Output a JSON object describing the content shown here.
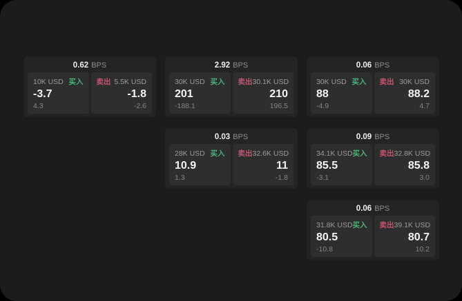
{
  "labels": {
    "buy": "买入",
    "sell": "卖出",
    "bps": "BPS"
  },
  "colors": {
    "buy": "#46b275",
    "sell": "#c2556d",
    "window_bg": "#1c1c1c",
    "card_bg": "#242424",
    "tile_bg": "#2e2e2e"
  },
  "cards": [
    {
      "col": 1,
      "row": 1,
      "bps": "0.62",
      "buy": {
        "size": "10K USD",
        "price": "-3.7",
        "delta": "4.3"
      },
      "sell": {
        "size": "5.5K USD",
        "price": "-1.8",
        "delta": "-2.6"
      }
    },
    {
      "col": 2,
      "row": 1,
      "bps": "2.92",
      "buy": {
        "size": "30K USD",
        "price": "201",
        "delta": "-188.1"
      },
      "sell": {
        "size": "30.1K USD",
        "price": "210",
        "delta": "196.5"
      }
    },
    {
      "col": 3,
      "row": 1,
      "bps": "0.06",
      "buy": {
        "size": "30K USD",
        "price": "88",
        "delta": "-4.9"
      },
      "sell": {
        "size": "30K USD",
        "price": "88.2",
        "delta": "4.7"
      }
    },
    {
      "col": 2,
      "row": 2,
      "bps": "0.03",
      "buy": {
        "size": "28K USD",
        "price": "10.9",
        "delta": "1.3"
      },
      "sell": {
        "size": "32.6K USD",
        "price": "11",
        "delta": "-1.8"
      }
    },
    {
      "col": 3,
      "row": 2,
      "bps": "0.09",
      "buy": {
        "size": "34.1K USD",
        "price": "85.5",
        "delta": "-3.1"
      },
      "sell": {
        "size": "32.8K USD",
        "price": "85.8",
        "delta": "3.0"
      }
    },
    {
      "col": 3,
      "row": 3,
      "bps": "0.06",
      "buy": {
        "size": "31.8K USD",
        "price": "80.5",
        "delta": "-10.8"
      },
      "sell": {
        "size": "39.1K USD",
        "price": "80.7",
        "delta": "10.2"
      }
    }
  ]
}
